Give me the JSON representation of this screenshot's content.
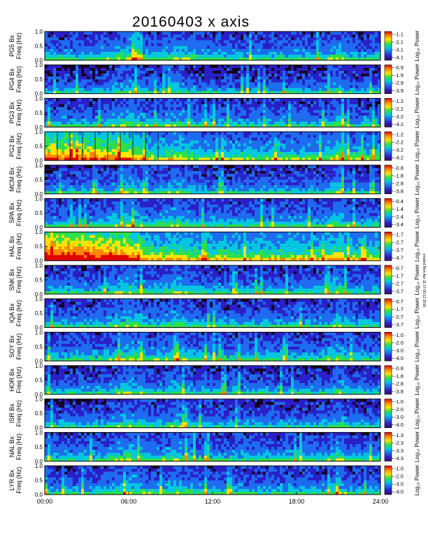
{
  "chart_data": {
    "type": "heatmap",
    "title": "20160403  x  axis",
    "x_axis": {
      "range_hours": [
        0,
        24
      ],
      "tick_hours": [
        0,
        6,
        12,
        18,
        24
      ],
      "tick_labels": [
        "00:00",
        "06:00",
        "12:00",
        "18:00",
        "24:00"
      ]
    },
    "y_axis": {
      "range_hz": [
        0,
        1.0
      ],
      "tick_values": [
        0.0,
        0.5,
        1.0
      ],
      "tick_labels": [
        "0.0",
        "0.5",
        "1.0"
      ]
    },
    "colorbar_label": "Log₁₀ Power",
    "colormap": [
      "#3b0a63",
      "#2a1fc8",
      "#1e6cf0",
      "#00c8e0",
      "#2ee04a",
      "#ffe400",
      "#ff8800",
      "#e00000"
    ],
    "background_color": "#14001f",
    "side_note": "created Mon Apr 11 17:00:12 2016",
    "panels": [
      {
        "station": "PG5",
        "ylabel": [
          "PG5  Bx",
          "Freq (Hz)"
        ],
        "cb_ticks": [
          "-1.1",
          "-2.1",
          "-3.1",
          "-4.1"
        ],
        "cb_label": "Log₁₀ Power",
        "intensity": 0.3,
        "features": []
      },
      {
        "station": "PG4",
        "ylabel": [
          "PG4  Bx",
          "Freq (Hz)"
        ],
        "cb_ticks": [
          "-0.9",
          "-1.9",
          "-2.9",
          "-3.9"
        ],
        "cb_label": "Log₁₀ Power",
        "intensity": 0.22,
        "features": []
      },
      {
        "station": "PG3",
        "ylabel": [
          "PG3  Bx",
          "Freq (Hz)"
        ],
        "cb_ticks": [
          "-1.2",
          "-2.2",
          "-3.2",
          "-4.2"
        ],
        "cb_label": "Log₁₀ Power",
        "intensity": 0.28,
        "features": []
      },
      {
        "station": "PG2",
        "ylabel": [
          "PG2  Bx",
          "Freq (Hz)"
        ],
        "cb_ticks": [
          "-1.2",
          "-2.2",
          "-3.2",
          "-4.2"
        ],
        "cb_label": "Log₁₀ Power",
        "intensity": 0.4,
        "features": [
          "strong_early"
        ]
      },
      {
        "station": "MCM",
        "ylabel": [
          "MCM  Bx",
          "Freq (Hz)"
        ],
        "cb_ticks": [
          "-0.8",
          "-1.8",
          "-2.8",
          "-3.8"
        ],
        "cb_label": "Log₁₀ Power",
        "intensity": 0.25,
        "features": [
          "harmonic_lines"
        ]
      },
      {
        "station": "SPA",
        "ylabel": [
          "SPA  Bx",
          "Freq (Hz)"
        ],
        "cb_ticks": [
          "-0.4",
          "-1.4",
          "-2.4",
          "-3.4"
        ],
        "cb_label": "Log₁₀ Power",
        "intensity": 0.3,
        "features": []
      },
      {
        "station": "HAL",
        "ylabel": [
          "HAL  Bx",
          "Freq (Hz)"
        ],
        "cb_ticks": [
          "-1.7",
          "-2.7",
          "-3.7",
          "-4.7"
        ],
        "cb_label": "Log₁₀ Power",
        "intensity": 0.5,
        "features": [
          "very_strong_early"
        ]
      },
      {
        "station": "SNK",
        "ylabel": [
          "SNK  Bx",
          "Freq (Hz)"
        ],
        "cb_ticks": [
          "-0.7",
          "-1.7",
          "-2.7",
          "-3.7"
        ],
        "cb_label": "Log₁₀ Power",
        "intensity": 0.28,
        "features": []
      },
      {
        "station": "IQA",
        "ylabel": [
          "IQA  Bx",
          "Freq (Hz)"
        ],
        "cb_ticks": [
          "-0.7",
          "-1.7",
          "-2.7",
          "-3.7"
        ],
        "cb_label": "Log₁₀ Power",
        "intensity": 0.28,
        "features": []
      },
      {
        "station": "SOY",
        "ylabel": [
          "SOY  Bx",
          "Freq (Hz)"
        ],
        "cb_ticks": [
          "-1.0",
          "-2.0",
          "-3.0",
          "-4.0"
        ],
        "cb_label": "Log₁₀ Power",
        "intensity": 0.3,
        "features": []
      },
      {
        "station": "HOR",
        "ylabel": [
          "HOR  Bx",
          "Freq (Hz)"
        ],
        "cb_ticks": [
          "-0.8",
          "-1.8",
          "-2.8",
          "-3.8"
        ],
        "cb_label": "Log₁₀ Power",
        "intensity": 0.25,
        "features": []
      },
      {
        "station": "ISR",
        "ylabel": [
          "ISR  Bx",
          "Freq (Hz)"
        ],
        "cb_ticks": [
          "-1.0",
          "-2.0",
          "-3.0",
          "-4.0"
        ],
        "cb_label": "Log₁₀ Power",
        "intensity": 0.25,
        "features": []
      },
      {
        "station": "NAL",
        "ylabel": [
          "NAL  Bx",
          "Freq (Hz)"
        ],
        "cb_ticks": [
          "-1.3",
          "-2.3",
          "-3.3",
          "-4.3"
        ],
        "cb_label": "Log₁₀ Power",
        "intensity": 0.3,
        "features": []
      },
      {
        "station": "LYR",
        "ylabel": [
          "LYR  Bx",
          "Freq (Hz)"
        ],
        "cb_ticks": [
          "-1.0",
          "-2.0",
          "-3.0",
          "-4.0"
        ],
        "cb_label": "Log₁₀ Power",
        "intensity": 0.28,
        "features": []
      }
    ]
  }
}
